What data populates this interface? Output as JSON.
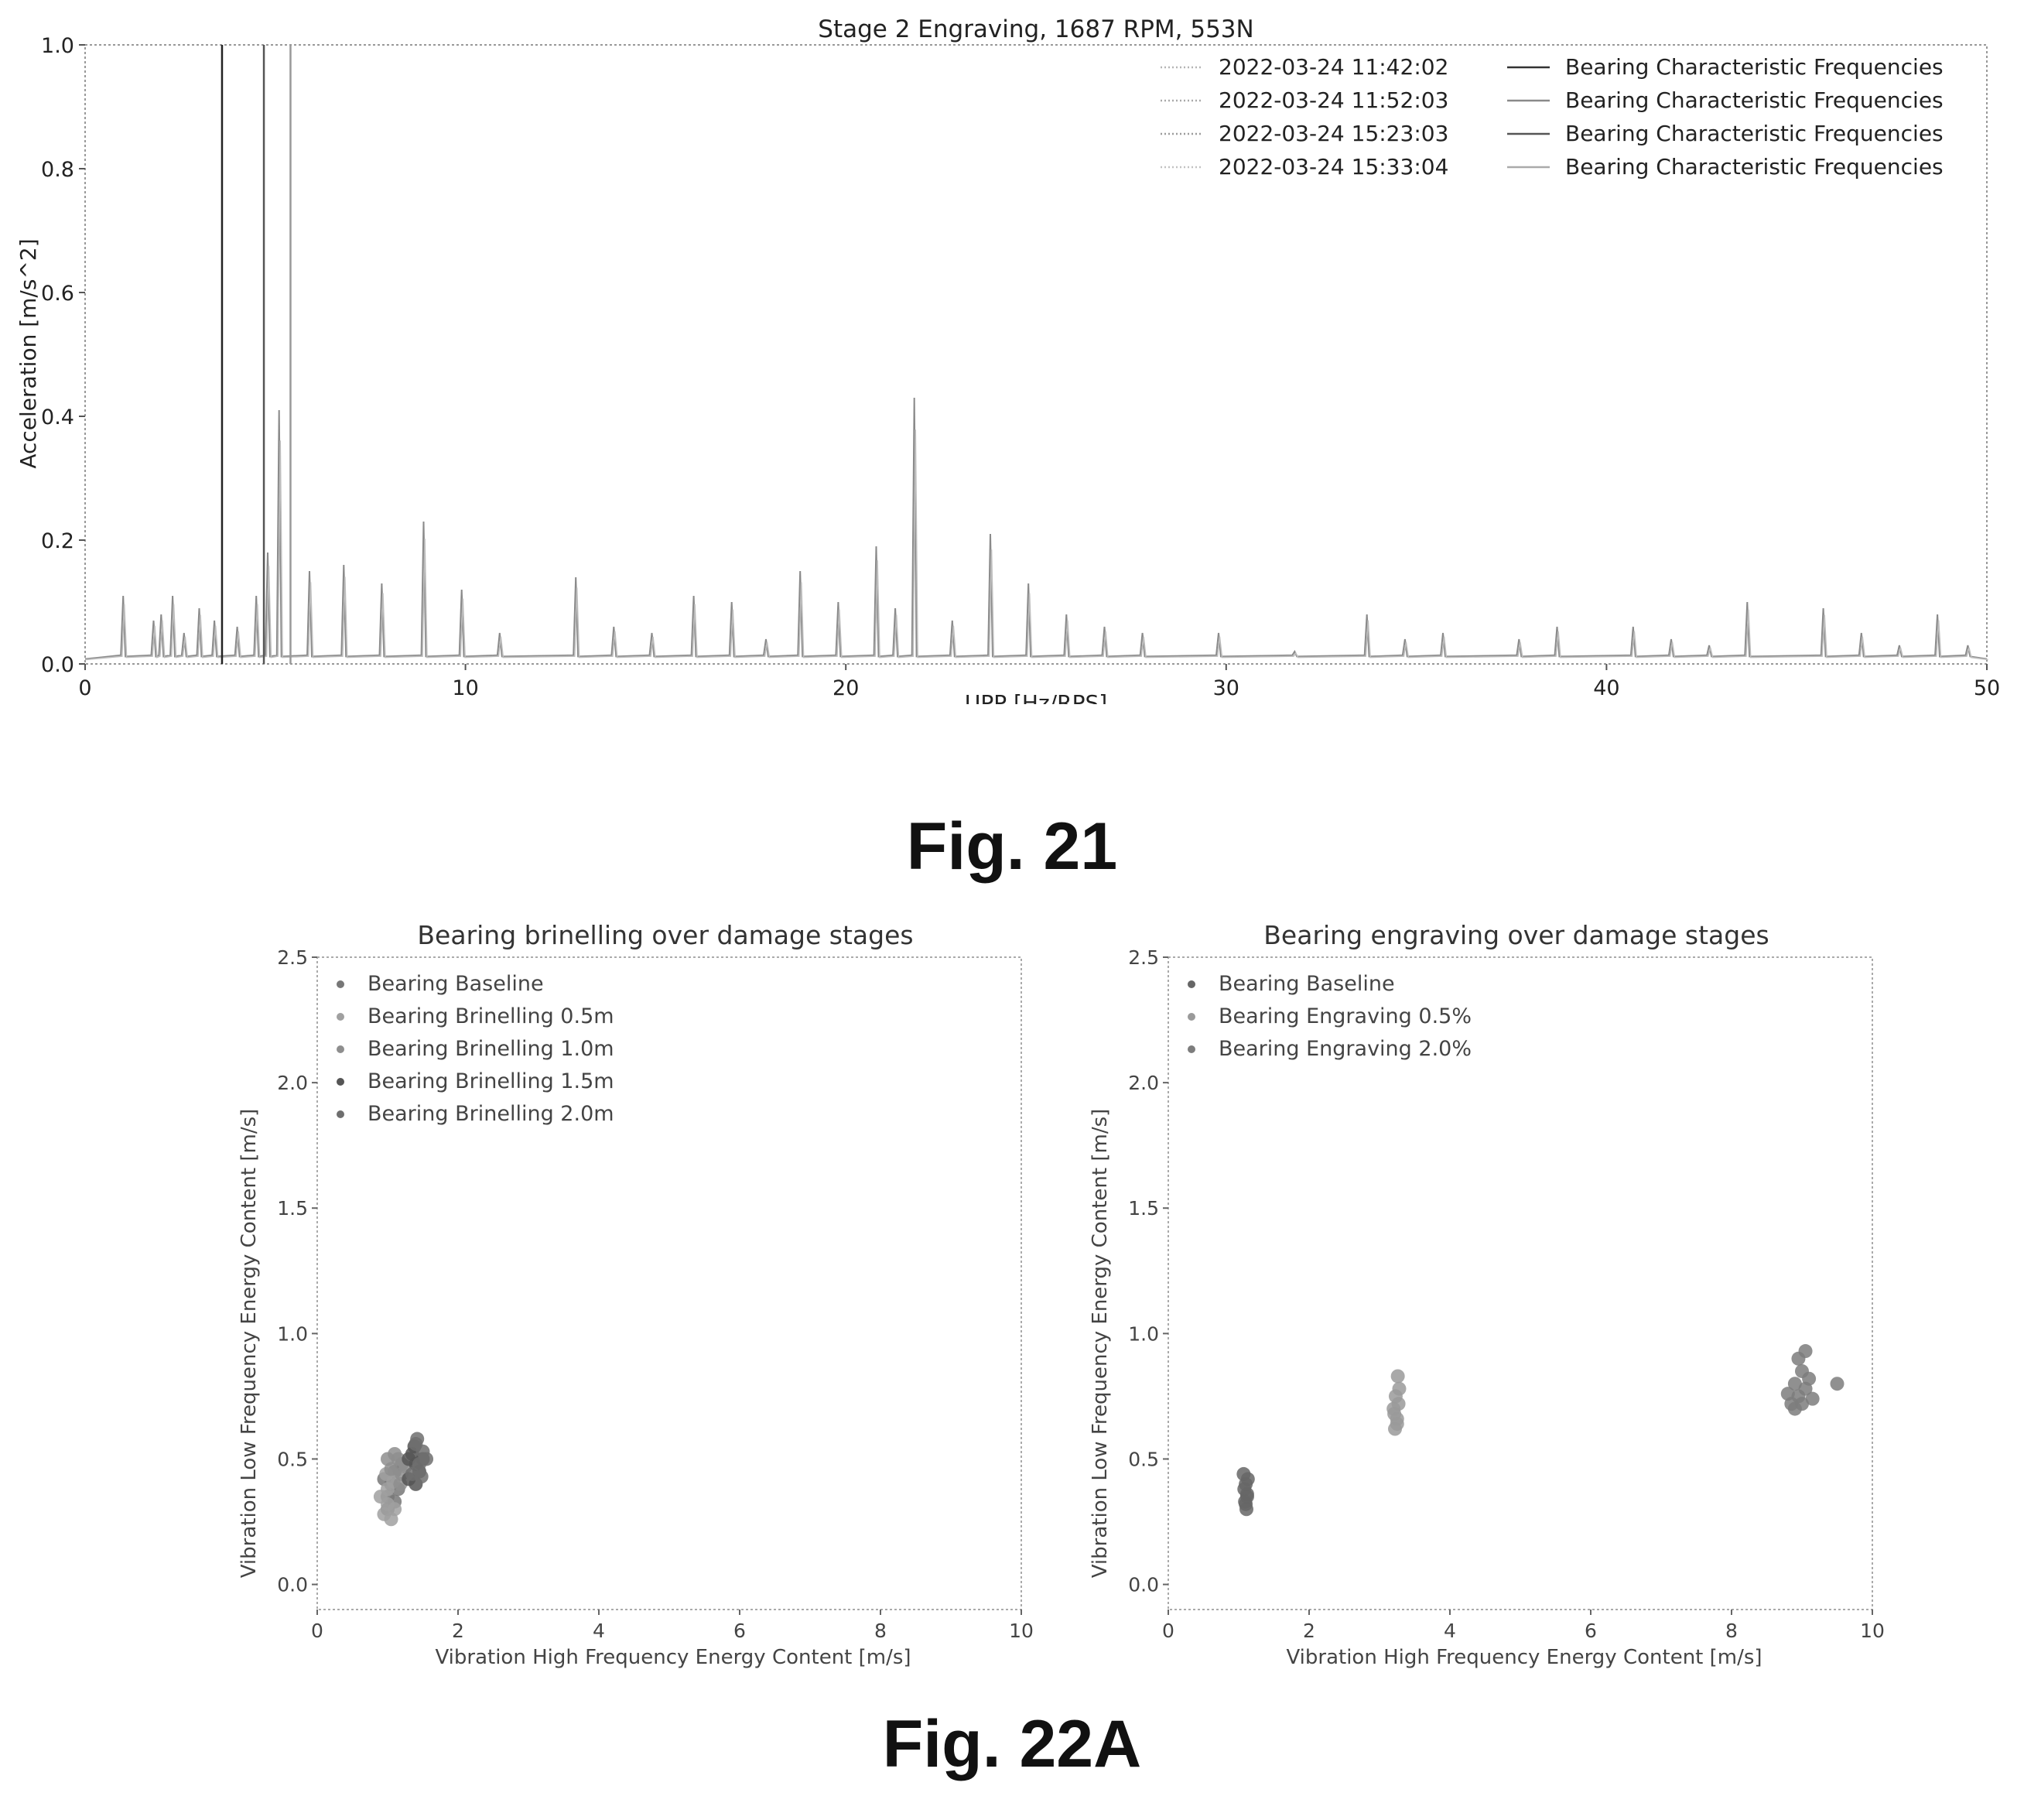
{
  "figures": {
    "fig21_caption": "Fig. 21",
    "fig22a_caption": "Fig. 22A"
  },
  "chart_data": [
    {
      "type": "line",
      "title": "Stage 2 Engraving, 1687 RPM, 553N",
      "xlabel": "UPP [Hz/RPS]",
      "ylabel": "Acceleration [m/s^2]",
      "xlim": [
        0,
        50
      ],
      "ylim": [
        0,
        1.0
      ],
      "xticks": [
        0,
        10,
        20,
        30,
        40,
        50
      ],
      "yticks": [
        0.0,
        0.2,
        0.4,
        0.6,
        0.8,
        1.0
      ],
      "grid": false,
      "legend_position": "top-right",
      "legend": [
        {
          "label": "2022-03-24 11:42:02",
          "color": "#b5b5b5",
          "dash": "2,3"
        },
        {
          "label": "2022-03-24 11:52:03",
          "color": "#a9a9a9",
          "dash": "2,3"
        },
        {
          "label": "2022-03-24 15:23:03",
          "color": "#9b9b9b",
          "dash": "2,3"
        },
        {
          "label": "2022-03-24 15:33:04",
          "color": "#c2c2c2",
          "dash": "2,3"
        },
        {
          "label": "Bearing Characteristic Frequencies",
          "color": "#333333",
          "dash": ""
        },
        {
          "label": "Bearing Characteristic Frequencies",
          "color": "#8a8a8a",
          "dash": ""
        },
        {
          "label": "Bearing Characteristic Frequencies",
          "color": "#555555",
          "dash": ""
        },
        {
          "label": "Bearing Characteristic Frequencies",
          "color": "#aaaaaa",
          "dash": ""
        }
      ],
      "vertical_lines": [
        {
          "x": 3.6,
          "color": "#222222"
        },
        {
          "x": 4.7,
          "color": "#555555"
        },
        {
          "x": 5.4,
          "color": "#999999"
        }
      ],
      "peaks": [
        {
          "x": 1.0,
          "y": 0.11
        },
        {
          "x": 1.8,
          "y": 0.07
        },
        {
          "x": 2.0,
          "y": 0.08
        },
        {
          "x": 2.3,
          "y": 0.11
        },
        {
          "x": 2.6,
          "y": 0.05
        },
        {
          "x": 3.0,
          "y": 0.09
        },
        {
          "x": 3.4,
          "y": 0.07
        },
        {
          "x": 4.0,
          "y": 0.06
        },
        {
          "x": 4.5,
          "y": 0.11
        },
        {
          "x": 4.8,
          "y": 0.18
        },
        {
          "x": 5.1,
          "y": 0.41
        },
        {
          "x": 5.9,
          "y": 0.15
        },
        {
          "x": 6.8,
          "y": 0.16
        },
        {
          "x": 7.8,
          "y": 0.13
        },
        {
          "x": 8.9,
          "y": 0.23
        },
        {
          "x": 9.9,
          "y": 0.12
        },
        {
          "x": 10.9,
          "y": 0.05
        },
        {
          "x": 12.9,
          "y": 0.14
        },
        {
          "x": 13.9,
          "y": 0.06
        },
        {
          "x": 14.9,
          "y": 0.05
        },
        {
          "x": 16.0,
          "y": 0.11
        },
        {
          "x": 17.0,
          "y": 0.1
        },
        {
          "x": 17.9,
          "y": 0.04
        },
        {
          "x": 18.8,
          "y": 0.15
        },
        {
          "x": 19.8,
          "y": 0.1
        },
        {
          "x": 20.8,
          "y": 0.19
        },
        {
          "x": 21.3,
          "y": 0.09
        },
        {
          "x": 21.8,
          "y": 0.43
        },
        {
          "x": 22.8,
          "y": 0.07
        },
        {
          "x": 23.8,
          "y": 0.21
        },
        {
          "x": 24.8,
          "y": 0.13
        },
        {
          "x": 25.8,
          "y": 0.08
        },
        {
          "x": 26.8,
          "y": 0.06
        },
        {
          "x": 27.8,
          "y": 0.05
        },
        {
          "x": 29.8,
          "y": 0.05
        },
        {
          "x": 31.8,
          "y": 0.02
        },
        {
          "x": 33.7,
          "y": 0.08
        },
        {
          "x": 34.7,
          "y": 0.04
        },
        {
          "x": 35.7,
          "y": 0.05
        },
        {
          "x": 37.7,
          "y": 0.04
        },
        {
          "x": 38.7,
          "y": 0.06
        },
        {
          "x": 40.7,
          "y": 0.06
        },
        {
          "x": 41.7,
          "y": 0.04
        },
        {
          "x": 42.7,
          "y": 0.03
        },
        {
          "x": 43.7,
          "y": 0.1
        },
        {
          "x": 45.7,
          "y": 0.09
        },
        {
          "x": 46.7,
          "y": 0.05
        },
        {
          "x": 47.7,
          "y": 0.03
        },
        {
          "x": 48.7,
          "y": 0.08
        },
        {
          "x": 49.5,
          "y": 0.03
        }
      ],
      "baseline": 0.008
    },
    {
      "type": "scatter",
      "title": "Bearing brinelling over damage stages",
      "xlabel": "Vibration High Frequency Energy Content [m/s]",
      "ylabel": "Vibration Low Frequency Energy Content [m/s]",
      "xlim": [
        0,
        10
      ],
      "ylim": [
        -0.1,
        2.5
      ],
      "xticks": [
        0,
        2,
        4,
        6,
        8,
        10
      ],
      "yticks": [
        0.0,
        0.5,
        1.0,
        1.5,
        2.0,
        2.5
      ],
      "legend_position": "top-left",
      "series": [
        {
          "name": "Bearing Baseline",
          "color": "#777777",
          "points": [
            [
              1.0,
              0.35
            ],
            [
              1.05,
              0.4
            ],
            [
              1.1,
              0.45
            ],
            [
              1.15,
              0.38
            ],
            [
              1.0,
              0.3
            ],
            [
              0.95,
              0.42
            ],
            [
              1.2,
              0.48
            ],
            [
              1.1,
              0.33
            ]
          ]
        },
        {
          "name": "Bearing Brinelling 0.5m",
          "color": "#a0a0a0",
          "points": [
            [
              0.95,
              0.28
            ],
            [
              1.0,
              0.32
            ],
            [
              1.05,
              0.26
            ],
            [
              0.9,
              0.35
            ],
            [
              1.1,
              0.3
            ],
            [
              1.0,
              0.38
            ],
            [
              0.98,
              0.44
            ],
            [
              1.08,
              0.41
            ]
          ]
        },
        {
          "name": "Bearing Brinelling 1.0m",
          "color": "#8e8e8e",
          "points": [
            [
              1.05,
              0.46
            ],
            [
              1.15,
              0.5
            ],
            [
              1.2,
              0.44
            ],
            [
              1.1,
              0.52
            ],
            [
              1.25,
              0.47
            ],
            [
              1.0,
              0.5
            ],
            [
              1.18,
              0.4
            ]
          ]
        },
        {
          "name": "Bearing Brinelling 1.5m",
          "color": "#555555",
          "points": [
            [
              1.3,
              0.42
            ],
            [
              1.4,
              0.48
            ],
            [
              1.35,
              0.52
            ],
            [
              1.45,
              0.45
            ],
            [
              1.3,
              0.5
            ],
            [
              1.4,
              0.4
            ],
            [
              1.5,
              0.5
            ],
            [
              1.38,
              0.55
            ]
          ]
        },
        {
          "name": "Bearing Brinelling 2.0m",
          "color": "#6e6e6e",
          "points": [
            [
              1.4,
              0.56
            ],
            [
              1.5,
              0.53
            ],
            [
              1.45,
              0.48
            ],
            [
              1.35,
              0.44
            ],
            [
              1.55,
              0.5
            ],
            [
              1.48,
              0.43
            ],
            [
              1.42,
              0.58
            ]
          ]
        }
      ]
    },
    {
      "type": "scatter",
      "title": "Bearing engraving over damage stages",
      "xlabel": "Vibration High Frequency Energy Content [m/s]",
      "ylabel": "Vibration Low Frequency Energy Content [m/s]",
      "xlim": [
        0,
        10
      ],
      "ylim": [
        -0.1,
        2.5
      ],
      "xticks": [
        0,
        2,
        4,
        6,
        8,
        10
      ],
      "yticks": [
        0.0,
        0.5,
        1.0,
        1.5,
        2.0,
        2.5
      ],
      "legend_position": "top-left",
      "series": [
        {
          "name": "Bearing Baseline",
          "color": "#666666",
          "points": [
            [
              1.1,
              0.32
            ],
            [
              1.12,
              0.35
            ],
            [
              1.08,
              0.38
            ],
            [
              1.1,
              0.4
            ],
            [
              1.13,
              0.42
            ],
            [
              1.07,
              0.44
            ],
            [
              1.12,
              0.36
            ],
            [
              1.09,
              0.33
            ],
            [
              1.11,
              0.3
            ]
          ]
        },
        {
          "name": "Bearing Engraving 0.5%",
          "color": "#9a9a9a",
          "points": [
            [
              3.22,
              0.62
            ],
            [
              3.25,
              0.66
            ],
            [
              3.2,
              0.7
            ],
            [
              3.27,
              0.72
            ],
            [
              3.23,
              0.75
            ],
            [
              3.25,
              0.64
            ],
            [
              3.28,
              0.78
            ],
            [
              3.26,
              0.83
            ],
            [
              3.21,
              0.68
            ]
          ]
        },
        {
          "name": "Bearing Engraving 2.0%",
          "color": "#7d7d7d",
          "points": [
            [
              8.85,
              0.72
            ],
            [
              8.95,
              0.75
            ],
            [
              9.05,
              0.78
            ],
            [
              8.9,
              0.8
            ],
            [
              9.0,
              0.85
            ],
            [
              9.1,
              0.82
            ],
            [
              8.95,
              0.9
            ],
            [
              9.05,
              0.93
            ],
            [
              8.8,
              0.76
            ],
            [
              9.15,
              0.74
            ],
            [
              9.5,
              0.8
            ],
            [
              8.9,
              0.7
            ],
            [
              9.0,
              0.72
            ]
          ]
        }
      ]
    }
  ]
}
